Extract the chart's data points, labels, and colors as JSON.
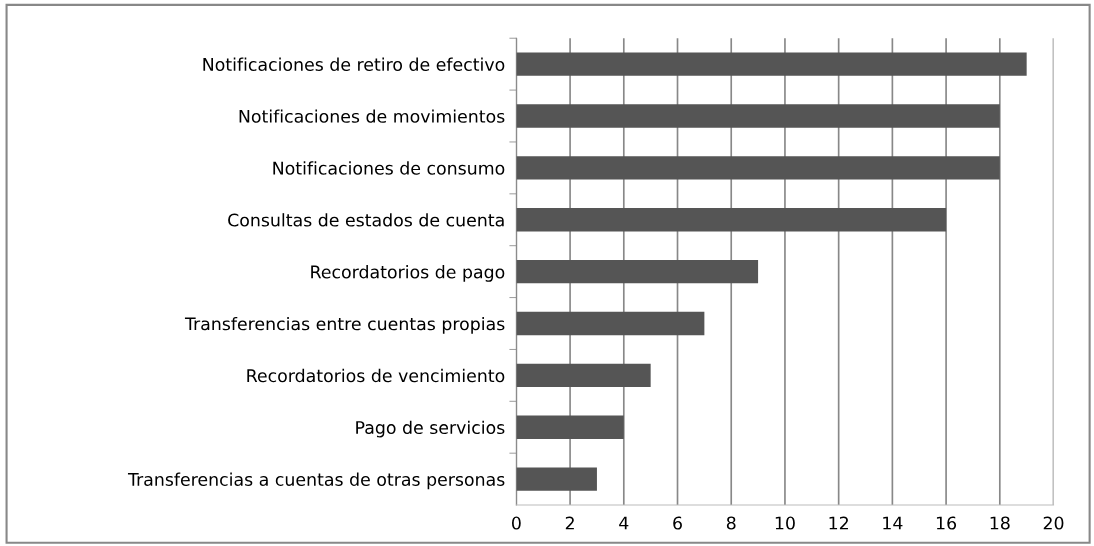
{
  "chart_data": {
    "type": "bar",
    "orientation": "horizontal",
    "categories": [
      "Notificaciones de retiro de efectivo",
      "Notificaciones de movimientos",
      "Notificaciones de consumo",
      "Consultas de estados de cuenta",
      "Recordatorios de pago",
      "Transferencias entre cuentas propias",
      "Recordatorios de vencimiento",
      "Pago de servicios",
      "Transferencias a cuentas de otras personas"
    ],
    "values": [
      19,
      18,
      18,
      16,
      9,
      7,
      5,
      4,
      3
    ],
    "color": "#555555",
    "xlim": [
      0,
      20
    ],
    "xticks": [
      0,
      2,
      4,
      6,
      8,
      10,
      12,
      14,
      16,
      18,
      20
    ],
    "grid": "x",
    "legend": false
  }
}
